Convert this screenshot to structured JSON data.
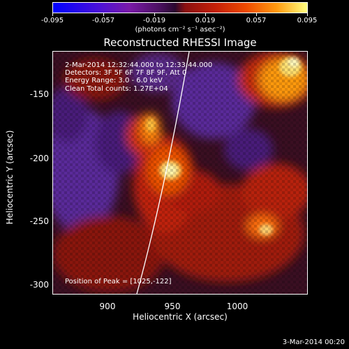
{
  "colorbar": {
    "tick_labels": [
      "-0.095",
      "-0.057",
      "-0.019",
      "0.019",
      "0.057",
      "0.095"
    ],
    "unit": "(photons cm⁻² s⁻¹ asec⁻²)",
    "colors": [
      "#0000ff",
      "#7a1aa8",
      "#2a0830",
      "#c42008",
      "#ff9a10",
      "#ffff80"
    ]
  },
  "title": "Reconstructed RHESSI Image",
  "annotations": {
    "time": "2-Mar-2014 12:32:44.000 to 12:33:44.000",
    "detectors": "Detectors: 3F 5F 6F 7F 8F 9F, Att 0",
    "energy": "Energy Range: 3.0 - 6.0 keV",
    "method": "Clean      Total counts: 1.27E+04",
    "peak": "Position of Peak = [1025,-122]"
  },
  "axes": {
    "xlabel": "Heliocentric X (arcsec)",
    "ylabel": "Heliocentric Y (arcsec)",
    "x_ticks": [
      "900",
      "950",
      "1000"
    ],
    "y_ticks": [
      "-150",
      "-200",
      "-250",
      "-300"
    ]
  },
  "footer": "3-Mar-2014 00:20"
}
